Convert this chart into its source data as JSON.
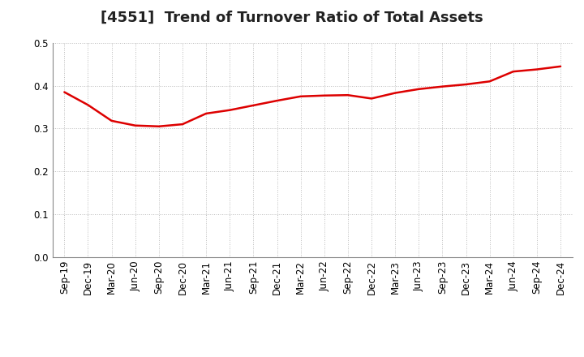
{
  "title": "[4551]  Trend of Turnover Ratio of Total Assets",
  "x_labels": [
    "Sep-19",
    "Dec-19",
    "Mar-20",
    "Jun-20",
    "Sep-20",
    "Dec-20",
    "Mar-21",
    "Jun-21",
    "Sep-21",
    "Dec-21",
    "Mar-22",
    "Jun-22",
    "Sep-22",
    "Dec-22",
    "Mar-23",
    "Jun-23",
    "Sep-23",
    "Dec-23",
    "Mar-24",
    "Jun-24",
    "Sep-24",
    "Dec-24"
  ],
  "y_values": [
    0.385,
    0.355,
    0.318,
    0.307,
    0.305,
    0.31,
    0.335,
    0.343,
    0.354,
    0.365,
    0.375,
    0.377,
    0.378,
    0.37,
    0.383,
    0.392,
    0.398,
    0.403,
    0.41,
    0.433,
    0.438,
    0.445
  ],
  "line_color": "#dd0000",
  "line_width": 1.8,
  "ylim": [
    0.0,
    0.5
  ],
  "yticks": [
    0.0,
    0.1,
    0.2,
    0.3,
    0.4,
    0.5
  ],
  "background_color": "#ffffff",
  "plot_bg_color": "#ffffff",
  "grid_color": "#bbbbbb",
  "title_fontsize": 13,
  "tick_fontsize": 8.5
}
